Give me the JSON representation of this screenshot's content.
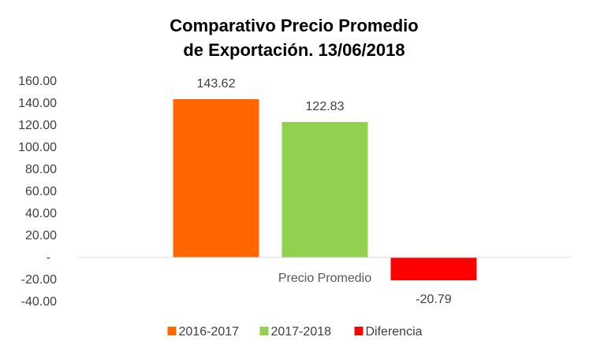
{
  "chart_data": {
    "type": "bar",
    "title_lines": [
      "Comparativo Precio Promedio",
      "de Exportación. 13/06/2018"
    ],
    "categories": [
      "Precio Promedio"
    ],
    "series": [
      {
        "name": "2016-2017",
        "values": [
          143.62
        ],
        "color": "#FF6600",
        "label": "143.62"
      },
      {
        "name": "2017-2018",
        "values": [
          122.83
        ],
        "color": "#92D050",
        "label": "122.83"
      },
      {
        "name": "Diferencia",
        "values": [
          -20.79
        ],
        "color": "#FF0000",
        "label": "-20.79"
      }
    ],
    "y_ticks": [
      "160.00",
      "140.00",
      "120.00",
      "100.00",
      "80.00",
      "60.00",
      "40.00",
      "20.00",
      "-",
      "-20.00",
      "-40.00"
    ],
    "ylim": [
      -40,
      160
    ],
    "legend_position": "bottom",
    "grid": false
  }
}
